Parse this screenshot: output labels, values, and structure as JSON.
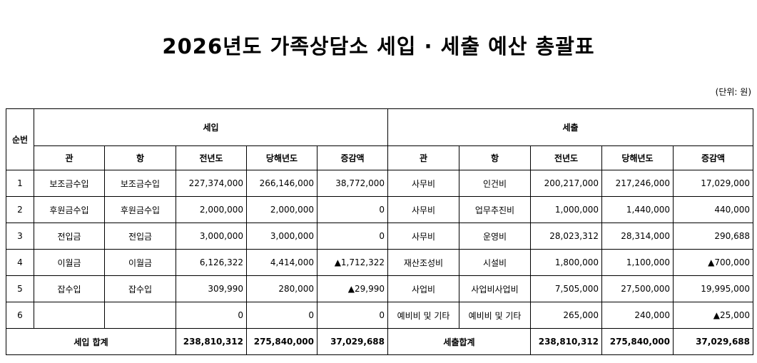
{
  "title": "2026년도 가족상담소 세입 · 세출 예산 총괄표",
  "unit": "(단위: 원)",
  "header": {
    "no": "순번",
    "income": "세입",
    "expense": "세출",
    "columns": [
      "관",
      "항",
      "전년도",
      "당해년도",
      "증감액",
      "관",
      "항",
      "전년도",
      "당해년도",
      "증감액"
    ]
  },
  "rows": [
    [
      "1",
      "보조금수입",
      "보조금수입",
      "227,374,000",
      "266,146,000",
      "38,772,000",
      "사무비",
      "인건비",
      "200,217,000",
      "217,246,000",
      "17,029,000"
    ],
    [
      "2",
      "후원금수입",
      "후원금수입",
      "2,000,000",
      "2,000,000",
      "0",
      "사무비",
      "업무추진비",
      "1,000,000",
      "1,440,000",
      "440,000"
    ],
    [
      "3",
      "전입금",
      "전입금",
      "3,000,000",
      "3,000,000",
      "0",
      "사무비",
      "운영비",
      "28,023,312",
      "28,314,000",
      "290,688"
    ],
    [
      "4",
      "이월금",
      "이월금",
      "6,126,322",
      "4,414,000",
      "▲1,712,322",
      "재산조성비",
      "시설비",
      "1,800,000",
      "1,100,000",
      "▲700,000"
    ],
    [
      "5",
      "잡수입",
      "잡수입",
      "309,990",
      "280,000",
      "▲29,990",
      "사업비",
      "사업비사업비",
      "7,505,000",
      "27,500,000",
      "19,995,000"
    ],
    [
      "6",
      null,
      null,
      "0",
      "0",
      "0",
      "예비비 및 기타",
      "예비비 및 기타",
      "265,000",
      "240,000",
      "▲25,000"
    ]
  ],
  "totals": {
    "income_label": "세입 합계",
    "income": [
      "238,810,312",
      "275,840,000",
      "37,029,688"
    ],
    "expense_label": "세출합계",
    "expense": [
      "238,810,312",
      "275,840,000",
      "37,029,688"
    ]
  }
}
